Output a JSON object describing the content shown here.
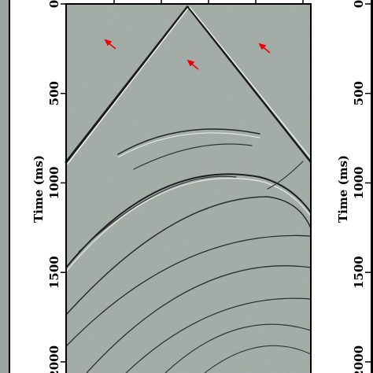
{
  "chart_data": {
    "type": "image",
    "y_label": "Time (ms)",
    "ylim": [
      0,
      2060
    ],
    "yticks": [
      0,
      500,
      1000,
      1500,
      2000
    ]
  }
}
